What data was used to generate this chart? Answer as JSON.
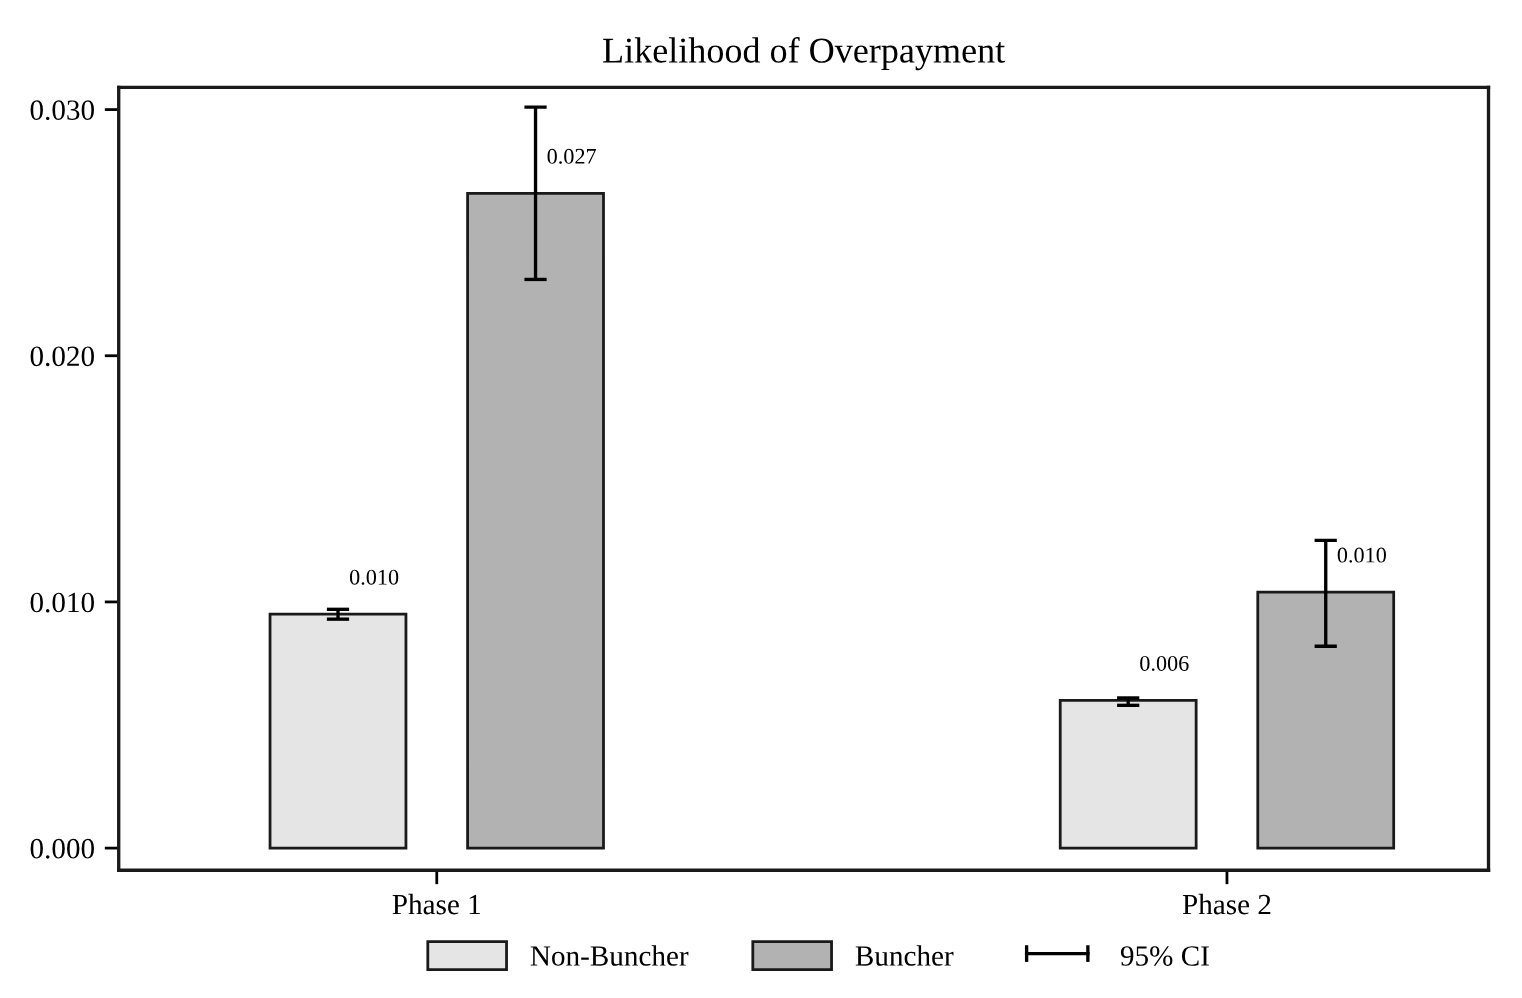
{
  "chart_data": {
    "type": "bar",
    "title": "Likelihood of Overpayment",
    "categories": [
      "Phase 1",
      "Phase 2"
    ],
    "series": [
      {
        "name": "Non-Buncher",
        "color": "#e5e5e5",
        "values": [
          0.0095,
          0.006
        ],
        "errors": [
          [
            0.0093,
            0.0097
          ],
          [
            0.0058,
            0.0061
          ]
        ],
        "value_labels": [
          "0.010",
          "0.006"
        ]
      },
      {
        "name": "Buncher",
        "color": "#b2b2b2",
        "values": [
          0.0266,
          0.0104
        ],
        "errors": [
          [
            0.0231,
            0.0301
          ],
          [
            0.0082,
            0.0125
          ]
        ],
        "value_labels": [
          "0.027",
          "0.010"
        ]
      }
    ],
    "ylim": [
      -0.0009,
      0.0309
    ],
    "yticks": [
      {
        "value": 0,
        "label": "0.000"
      },
      {
        "value": 0.01,
        "label": "0.010"
      },
      {
        "value": 0.02,
        "label": "0.020"
      },
      {
        "value": 0.03,
        "label": "0.030"
      }
    ],
    "legend": "bottom",
    "annotations": [
      "95% CI"
    ]
  }
}
